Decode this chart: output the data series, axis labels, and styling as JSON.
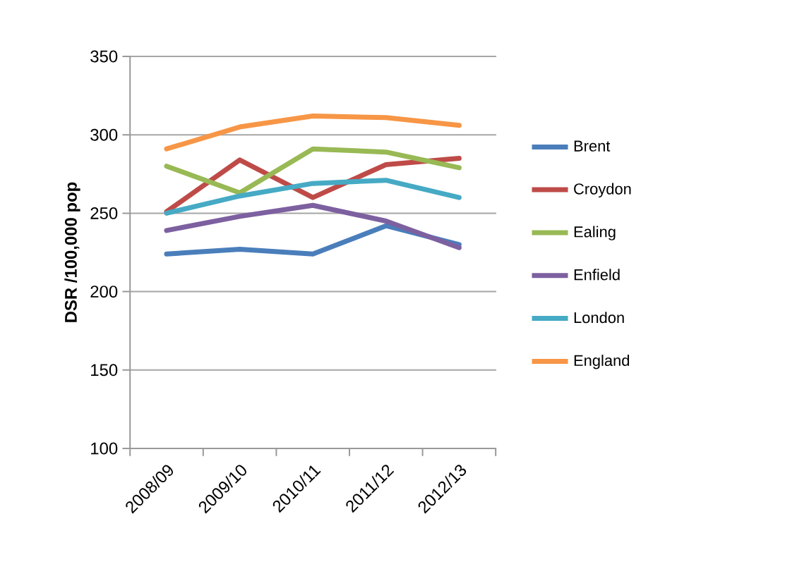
{
  "chart_data": {
    "type": "line",
    "ylabel": "DSR /100,000 pop",
    "categories": [
      "2008/09",
      "2009/10",
      "2010/11",
      "2011/12",
      "2012/13"
    ],
    "series": [
      {
        "name": "Brent",
        "color": "#4a7ebb",
        "values": [
          224,
          227,
          224,
          242,
          230
        ]
      },
      {
        "name": "Croydon",
        "color": "#be4b48",
        "values": [
          251,
          284,
          260,
          281,
          285
        ]
      },
      {
        "name": "Ealing",
        "color": "#98b954",
        "values": [
          280,
          263,
          291,
          289,
          279
        ]
      },
      {
        "name": "Enfield",
        "color": "#7d60a0",
        "values": [
          239,
          248,
          255,
          245,
          228
        ]
      },
      {
        "name": "London",
        "color": "#46aac5",
        "values": [
          250,
          261,
          269,
          271,
          260
        ]
      },
      {
        "name": "England",
        "color": "#f79646",
        "values": [
          291,
          305,
          312,
          311,
          306
        ]
      }
    ],
    "ylim": [
      100,
      350
    ],
    "yticks": [
      100,
      150,
      200,
      250,
      300,
      350
    ],
    "grid": "y",
    "legend": "right",
    "marker": "none",
    "line_style": "solid"
  }
}
